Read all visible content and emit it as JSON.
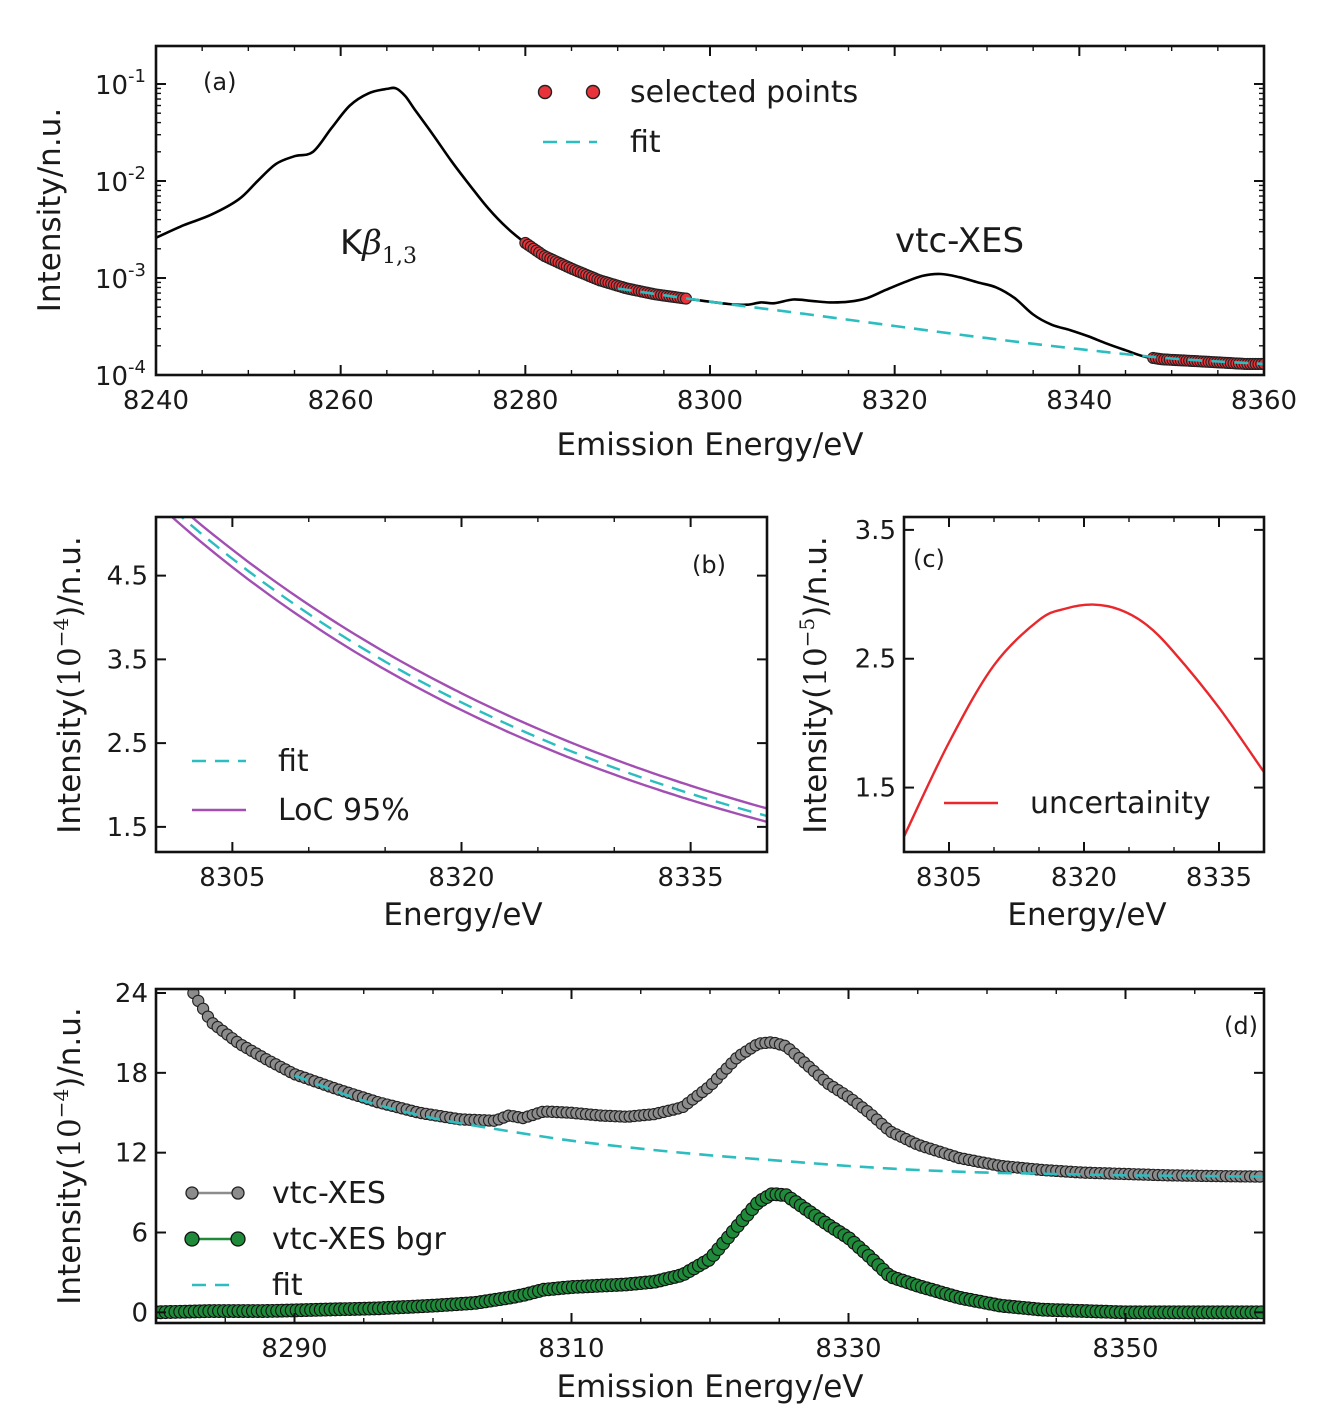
{
  "colors": {
    "spectrum_line": "#000000",
    "selected_points": "#e8333a",
    "fit": "#2bbdbf",
    "loc": "#a24fb3",
    "uncertainty": "#e8282c",
    "vtc_xes": "#8c8c8c",
    "vtc_xes_bgr": "#1f8a3a"
  },
  "chart_data": [
    {
      "panel": "(a)",
      "type": "line",
      "title": "",
      "xlabel": "Emission Energy/eV",
      "ylabel": "Intensity/n.u.",
      "xlim": [
        8240,
        8360
      ],
      "ylim": [
        0.0001,
        0.1
      ],
      "yscale": "log",
      "x_ticks": [
        8240,
        8260,
        8280,
        8300,
        8320,
        8340,
        8360
      ],
      "y_ticks": [
        0.1,
        0.01,
        0.001,
        0.0001
      ],
      "y_tick_labels": [
        {
          "base": "10",
          "exp": "-1"
        },
        {
          "base": "10",
          "exp": "-2"
        },
        {
          "base": "10",
          "exp": "-3"
        },
        {
          "base": "10",
          "exp": "-4"
        }
      ],
      "annotations": [
        {
          "base": "K",
          "greek": "β",
          "sub": "1,3",
          "x": 8257,
          "y": 0.0022
        },
        {
          "text": "vtc-XES",
          "x": 8322,
          "y": 0.0032
        }
      ],
      "legend": {
        "position": "top-center",
        "entries": [
          "selected points",
          "fit"
        ]
      },
      "series": [
        {
          "name": "spectrum",
          "style": "line",
          "x": [
            8240,
            8243,
            8246,
            8249,
            8251,
            8253,
            8255,
            8257,
            8259,
            8261,
            8263,
            8265,
            8266,
            8267,
            8268,
            8270,
            8272,
            8274,
            8276,
            8278,
            8280,
            8282,
            8285,
            8288,
            8291,
            8294,
            8297,
            8300,
            8302,
            8304,
            8305.5,
            8307,
            8309,
            8311,
            8313,
            8315,
            8317,
            8319,
            8321,
            8323,
            8325,
            8327,
            8329,
            8331,
            8333,
            8335,
            8337,
            8339,
            8341,
            8343,
            8345,
            8347,
            8349,
            8352,
            8355,
            8358,
            8360
          ],
          "y": [
            0.0026,
            0.0035,
            0.0045,
            0.0065,
            0.01,
            0.015,
            0.018,
            0.02,
            0.035,
            0.06,
            0.08,
            0.089,
            0.09,
            0.075,
            0.055,
            0.03,
            0.016,
            0.009,
            0.0052,
            0.0033,
            0.0023,
            0.0017,
            0.00125,
            0.00095,
            0.00078,
            0.00068,
            0.00062,
            0.00057,
            0.00054,
            0.00053,
            0.00056,
            0.00055,
            0.0006,
            0.00058,
            0.00056,
            0.00057,
            0.00062,
            0.00075,
            0.0009,
            0.00105,
            0.0011,
            0.00102,
            0.0009,
            0.0008,
            0.00062,
            0.00042,
            0.00033,
            0.00029,
            0.00025,
            0.00021,
            0.00018,
            0.000155,
            0.000145,
            0.00014,
            0.000135,
            0.00013,
            0.00013
          ]
        },
        {
          "name": "fit",
          "style": "dashed",
          "x": [
            8290,
            8300,
            8310,
            8320,
            8330,
            8340,
            8350,
            8360
          ],
          "y": [
            0.00078,
            0.00057,
            0.00043,
            0.00032,
            0.00024,
            0.000185,
            0.000148,
            0.00013
          ]
        },
        {
          "name": "selected points",
          "style": "markers",
          "ranges": [
            [
              8280,
              8297.5
            ],
            [
              8348,
              8360
            ]
          ]
        }
      ]
    },
    {
      "panel": "(b)",
      "type": "line",
      "xlabel": "Energy/eV",
      "ylabel_prefix": "Intensity(",
      "ylabel_exp": "−4",
      "ylabel_suffix": ")/n.u.",
      "xlim": [
        8300,
        8340
      ],
      "ylim": [
        1.2,
        5.2
      ],
      "x_ticks": [
        8305,
        8320,
        8335
      ],
      "y_ticks": [
        1.5,
        2.5,
        3.5,
        4.5
      ],
      "legend": {
        "position": "lower-left",
        "entries": [
          "fit",
          "LoC 95%"
        ]
      },
      "series": [
        {
          "name": "fit",
          "style": "dashed",
          "x": [
            8300,
            8340
          ],
          "y": [
            5.47,
            1.63
          ],
          "decay": 0.0355
        },
        {
          "name": "LoC 95% upper",
          "style": "solid",
          "x": [
            8300,
            8340
          ],
          "y": [
            5.57,
            1.72
          ],
          "decay": 0.0355
        },
        {
          "name": "LoC 95% lower",
          "style": "solid",
          "x": [
            8300,
            8340
          ],
          "y": [
            5.37,
            1.56
          ],
          "decay": 0.0355
        }
      ]
    },
    {
      "panel": "(c)",
      "type": "line",
      "xlabel": "Energy/eV",
      "ylabel_prefix": "Intensity(",
      "ylabel_exp": "−5",
      "ylabel_suffix": ")/n.u.",
      "xlim": [
        8300,
        8340
      ],
      "ylim": [
        1.0,
        3.6
      ],
      "x_ticks": [
        8305,
        8320,
        8335
      ],
      "y_ticks": [
        1.5,
        2.5,
        3.5
      ],
      "legend": {
        "position": "lower-center",
        "entries": [
          "uncertainity"
        ]
      },
      "series": [
        {
          "name": "uncertainity",
          "x": [
            8300,
            8305,
            8310,
            8315,
            8318,
            8321,
            8324,
            8327,
            8330,
            8335,
            8340
          ],
          "y": [
            1.12,
            1.85,
            2.45,
            2.8,
            2.89,
            2.92,
            2.88,
            2.76,
            2.55,
            2.12,
            1.62
          ]
        }
      ]
    },
    {
      "panel": "(d)",
      "type": "line",
      "xlabel": "Emission Energy/eV",
      "ylabel_prefix": "Intensity(",
      "ylabel_exp": "−4",
      "ylabel_suffix": ")/n.u.",
      "xlim": [
        8280,
        8360
      ],
      "ylim": [
        -0.8,
        24.3
      ],
      "x_ticks": [
        8290,
        8310,
        8330,
        8350
      ],
      "y_ticks": [
        0,
        6,
        12,
        18,
        24
      ],
      "legend": {
        "position": "lower-left",
        "entries": [
          "vtc-XES",
          "vtc-XES bgr",
          "fit"
        ]
      },
      "series": [
        {
          "name": "vtc-XES",
          "style": "line-markers",
          "x": [
            8282.7,
            8284,
            8286,
            8288,
            8290,
            8293,
            8296,
            8299,
            8302,
            8304.5,
            8305.5,
            8306.5,
            8308,
            8310,
            8312,
            8314,
            8316,
            8318,
            8320,
            8322,
            8323.5,
            8324.5,
            8325.5,
            8327,
            8328.5,
            8330,
            8331.5,
            8333,
            8335,
            8338,
            8341,
            8344,
            8347,
            8350,
            8353,
            8356,
            8360
          ],
          "y": [
            24,
            21.8,
            20.2,
            19,
            17.9,
            16.8,
            15.8,
            15,
            14.5,
            14.4,
            14.8,
            14.6,
            15.1,
            15,
            14.8,
            14.7,
            14.9,
            15.4,
            17,
            19.2,
            20.2,
            20.3,
            20,
            18.6,
            17.2,
            16.2,
            15,
            13.6,
            12.6,
            11.6,
            11,
            10.7,
            10.5,
            10.4,
            10.3,
            10.25,
            10.2
          ]
        },
        {
          "name": "vtc-XES bgr",
          "style": "line-markers",
          "x": [
            8280,
            8284,
            8288,
            8292,
            8296,
            8300,
            8303,
            8305.5,
            8306.5,
            8308,
            8310,
            8312,
            8314,
            8316,
            8318,
            8320,
            8322,
            8323.5,
            8324.5,
            8325.5,
            8327,
            8328.5,
            8330,
            8331.5,
            8333,
            8335,
            8338,
            8341,
            8344,
            8347,
            8350,
            8355,
            8360
          ],
          "y": [
            0,
            0.1,
            0.1,
            0.2,
            0.3,
            0.5,
            0.7,
            1.1,
            1.3,
            1.7,
            1.9,
            2,
            2.1,
            2.3,
            2.8,
            4,
            6.5,
            8.3,
            8.9,
            8.8,
            7.7,
            6.6,
            5.6,
            4.2,
            2.7,
            2,
            1.1,
            0.5,
            0.2,
            0.1,
            0,
            0,
            0
          ]
        },
        {
          "name": "fit",
          "style": "dashed",
          "x": [
            8290,
            8295,
            8300,
            8305,
            8310,
            8315,
            8320,
            8325,
            8330,
            8335,
            8340,
            8345,
            8350,
            8355,
            8360
          ],
          "y": [
            17.8,
            15.9,
            14.6,
            13.7,
            12.9,
            12.3,
            11.8,
            11.4,
            11,
            10.7,
            10.5,
            10.4,
            10.3,
            10.25,
            10.2
          ]
        }
      ]
    }
  ]
}
